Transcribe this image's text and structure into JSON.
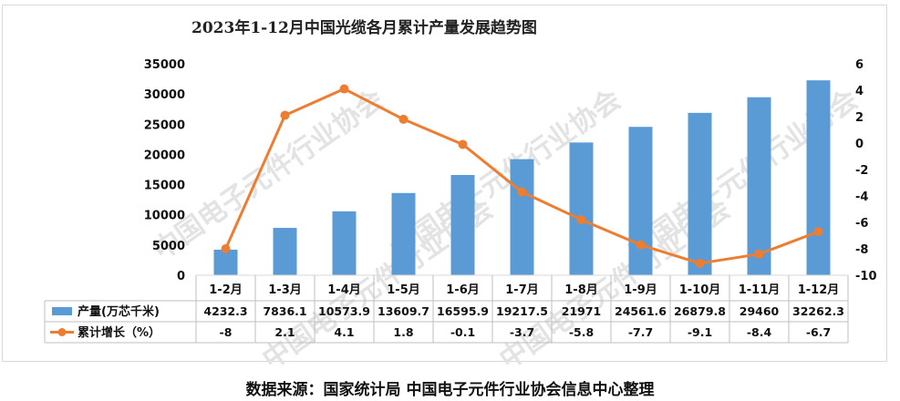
{
  "title": "2023年1-12月中国光缆各月累计产量发展趋势图",
  "source": "数据来源：国家统计局    中国电子元件行业协会信息中心整理",
  "watermark": "中国电子元件行业协会",
  "colors": {
    "bar": "#5b9bd5",
    "line": "#ed7d31",
    "grid": "#d9d9d9",
    "table_border": "#bfbfbf"
  },
  "chart_data": {
    "type": "bar",
    "title": "2023年1-12月中国光缆各月累计产量发展趋势图",
    "categories": [
      "1-2月",
      "1-3月",
      "1-4月",
      "1-5月",
      "1-6月",
      "1-7月",
      "1-8月",
      "1-9月",
      "1-10月",
      "1-11月",
      "1-12月"
    ],
    "series": [
      {
        "name": "产量(万芯千米)",
        "type": "bar",
        "axis": "left",
        "values": [
          4232.3,
          7836.1,
          10573.9,
          13609.7,
          16595.9,
          19217.5,
          21971,
          24561.6,
          26879.8,
          29460,
          32262.3
        ],
        "labels": [
          "4232.3",
          "7836.1",
          "10573.9",
          "13609.7",
          "16595.9",
          "19217.5",
          "21971",
          "24561.6",
          "26879.8",
          "29460",
          "32262.3"
        ]
      },
      {
        "name": "累计增长（%）",
        "type": "line",
        "axis": "right",
        "values": [
          -8,
          2.1,
          4.1,
          1.8,
          -0.1,
          -3.7,
          -5.8,
          -7.7,
          -9.1,
          -8.4,
          -6.7
        ],
        "labels": [
          "-8",
          "2.1",
          "4.1",
          "1.8",
          "-0.1",
          "-3.7",
          "-5.8",
          "-7.7",
          "-9.1",
          "-8.4",
          "-6.7"
        ]
      }
    ],
    "y_left": {
      "min": 0,
      "max": 35000,
      "step": 5000,
      "ticks": [
        "0",
        "5000",
        "10000",
        "15000",
        "20000",
        "25000",
        "30000",
        "35000"
      ]
    },
    "y_right": {
      "min": -10,
      "max": 6,
      "step": 2,
      "ticks": [
        "-10",
        "-8",
        "-6",
        "-4",
        "-2",
        "0",
        "2",
        "4",
        "6"
      ]
    },
    "grid": false,
    "legend": "data-table"
  }
}
